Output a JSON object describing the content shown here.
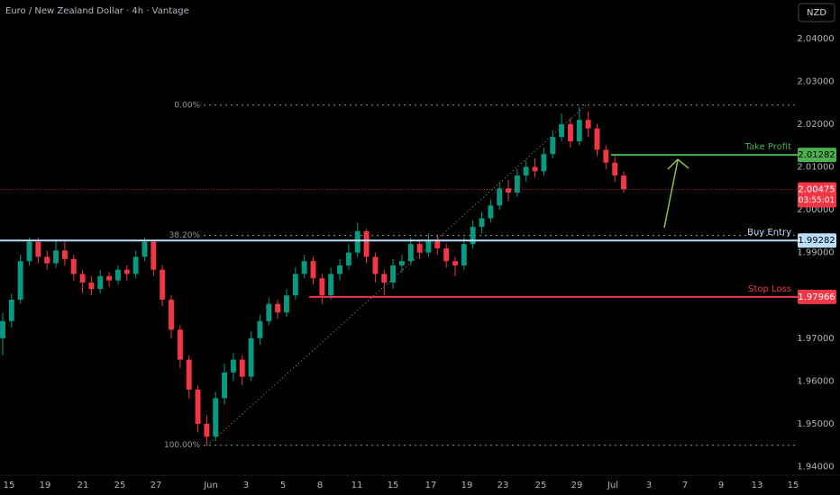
{
  "chart_data": {
    "type": "candlestick",
    "title": "Euro / New Zealand Dollar · 4h · Vantage",
    "currency": "NZD",
    "ylim": [
      1.938,
      2.049
    ],
    "yticks": [
      {
        "value": 1.94,
        "label": "1.94000"
      },
      {
        "value": 1.95,
        "label": "1.95000"
      },
      {
        "value": 1.96,
        "label": "1.96000"
      },
      {
        "value": 1.97,
        "label": "1.97000"
      },
      {
        "value": 1.98,
        "label": "1.98000"
      },
      {
        "value": 1.99,
        "label": "1.99000"
      },
      {
        "value": 2.0,
        "label": "2.00000"
      },
      {
        "value": 2.01,
        "label": "2.01000"
      },
      {
        "value": 2.02,
        "label": "2.02000"
      },
      {
        "value": 2.03,
        "label": "2.03000"
      },
      {
        "value": 2.04,
        "label": "2.04000"
      }
    ],
    "x_labels": [
      "15",
      "19",
      "21",
      "25",
      "27",
      "Jun",
      "3",
      "5",
      "8",
      "11",
      "15",
      "17",
      "19",
      "23",
      "25",
      "29",
      "Jul",
      "3",
      "7",
      "9",
      "13",
      "15"
    ],
    "up_color": "#089981",
    "down_color": "#f23645",
    "open": [
      1.97,
      1.974,
      1.979,
      1.988,
      1.9925,
      1.989,
      1.9875,
      1.9905,
      1.9885,
      1.985,
      1.983,
      1.9815,
      1.9845,
      1.9835,
      1.986,
      1.985,
      1.989,
      1.9925,
      1.986,
      1.979,
      1.972,
      1.965,
      1.958,
      1.95,
      1.947,
      1.956,
      1.962,
      1.965,
      1.961,
      1.97,
      1.974,
      1.978,
      1.976,
      1.98,
      1.985,
      1.988,
      1.984,
      1.98,
      1.985,
      1.987,
      1.99,
      1.995,
      1.989,
      1.985,
      1.983,
      1.987,
      1.988,
      1.992,
      1.99,
      1.993,
      1.991,
      1.988,
      1.987,
      1.992,
      1.996,
      1.998,
      2.001,
      2.005,
      2.004,
      2.008,
      2.01,
      2.009,
      2.013,
      2.017,
      2.02,
      2.016,
      2.021,
      2.019,
      2.014,
      2.011,
      2.008
    ],
    "high": [
      1.976,
      1.9805,
      1.9895,
      1.9935,
      1.9935,
      1.9905,
      1.993,
      1.9925,
      1.9895,
      1.986,
      1.9845,
      1.986,
      1.9855,
      1.987,
      1.987,
      1.9905,
      1.9935,
      1.993,
      1.987,
      1.98,
      1.973,
      1.966,
      1.959,
      1.952,
      1.9575,
      1.964,
      1.9665,
      1.966,
      1.9715,
      1.9755,
      1.9795,
      1.979,
      1.9815,
      1.9865,
      1.9895,
      1.989,
      1.985,
      1.9865,
      1.9885,
      1.992,
      1.997,
      1.9955,
      1.99,
      1.986,
      1.9885,
      1.9895,
      1.9935,
      1.993,
      1.9945,
      1.994,
      1.992,
      1.989,
      1.9935,
      1.9975,
      1.9995,
      2.0025,
      2.0065,
      2.007,
      2.0095,
      2.0115,
      2.012,
      2.0145,
      2.0185,
      2.0225,
      2.0215,
      2.024,
      2.023,
      2.02,
      2.015,
      2.0125,
      2.009
    ],
    "low": [
      1.966,
      1.9725,
      1.978,
      1.987,
      1.9875,
      1.986,
      1.9865,
      1.987,
      1.9835,
      1.9805,
      1.98,
      1.9805,
      1.982,
      1.9825,
      1.9835,
      1.984,
      1.988,
      1.9845,
      1.9775,
      1.97,
      1.963,
      1.956,
      1.948,
      1.945,
      1.946,
      1.9545,
      1.96,
      1.959,
      1.96,
      1.9685,
      1.973,
      1.9745,
      1.975,
      1.979,
      1.984,
      1.9825,
      1.978,
      1.979,
      1.9835,
      1.986,
      1.989,
      1.9875,
      1.983,
      1.98,
      1.9815,
      1.9855,
      1.987,
      1.9885,
      1.989,
      1.9895,
      1.9865,
      1.9845,
      1.986,
      1.991,
      1.9945,
      1.997,
      2.0,
      2.002,
      2.003,
      2.0065,
      2.0075,
      2.008,
      2.012,
      2.016,
      2.0145,
      2.015,
      2.017,
      2.0125,
      2.0095,
      2.0065,
      2.004
    ],
    "close": [
      1.974,
      1.979,
      1.988,
      1.9925,
      1.989,
      1.9875,
      1.9905,
      1.9885,
      1.985,
      1.983,
      1.9815,
      1.9845,
      1.9835,
      1.986,
      1.985,
      1.989,
      1.9925,
      1.986,
      1.979,
      1.972,
      1.965,
      1.958,
      1.95,
      1.947,
      1.956,
      1.962,
      1.965,
      1.961,
      1.97,
      1.974,
      1.978,
      1.976,
      1.98,
      1.985,
      1.988,
      1.984,
      1.98,
      1.985,
      1.987,
      1.99,
      1.995,
      1.989,
      1.985,
      1.983,
      1.987,
      1.988,
      1.992,
      1.99,
      1.993,
      1.991,
      1.988,
      1.987,
      1.992,
      1.996,
      1.998,
      2.001,
      2.005,
      2.004,
      2.008,
      2.01,
      2.009,
      2.013,
      2.017,
      2.02,
      2.016,
      2.021,
      2.019,
      2.014,
      2.011,
      2.008,
      2.0048
    ],
    "levels": [
      {
        "name": "Take Profit",
        "value": 2.01282,
        "color": "#4caf50"
      },
      {
        "name": "Buy Entry",
        "value": 1.99282,
        "color": "#bbdefb"
      },
      {
        "name": "Stop Loss",
        "value": 1.97966,
        "color": "#f23645"
      }
    ],
    "fib_levels": [
      {
        "label": "0.00%",
        "price": 2.02445
      },
      {
        "label": "38.20%",
        "price": 1.994
      },
      {
        "label": "100.00%",
        "price": 1.945
      }
    ],
    "last_price": 2.00475,
    "countdown": "03:55:01"
  }
}
